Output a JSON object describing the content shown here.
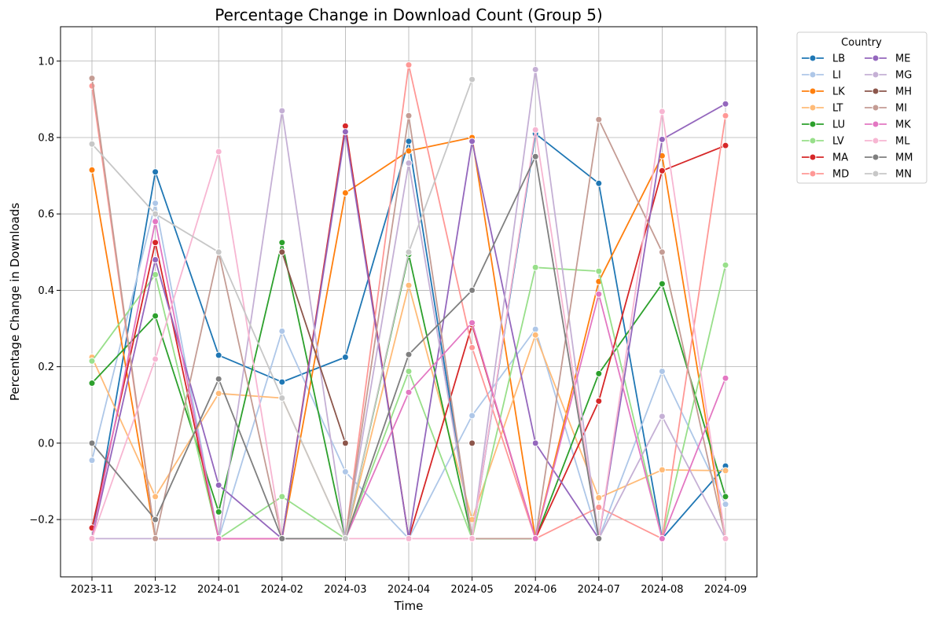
{
  "chart_data": {
    "type": "line",
    "title": "Percentage Change in Download Count (Group 5)",
    "xlabel": "Time",
    "ylabel": "Percentage Change in Downloads",
    "x": [
      "2023-11",
      "2023-12",
      "2024-01",
      "2024-02",
      "2024-03",
      "2024-04",
      "2024-05",
      "2024-06",
      "2024-07",
      "2024-08",
      "2024-09"
    ],
    "y_ticks": [
      -0.2,
      0.0,
      0.2,
      0.4,
      0.6,
      0.8,
      1.0
    ],
    "y_tick_labels": [
      "−0.2",
      "0.0",
      "0.2",
      "0.4",
      "0.6",
      "0.8",
      "1.0"
    ],
    "ylim": [
      -0.35,
      1.09
    ],
    "grid": true,
    "legend_title": "Country",
    "legend_placement": "outside-upper-right",
    "series": [
      {
        "name": "LB",
        "color": "#1f77b4",
        "values": [
          -0.25,
          0.71,
          0.23,
          0.16,
          0.225,
          0.79,
          -0.25,
          0.81,
          0.68,
          -0.25,
          -0.06
        ]
      },
      {
        "name": "LI",
        "color": "#aec7e8",
        "values": [
          -0.045,
          0.628,
          -0.25,
          0.293,
          -0.075,
          -0.25,
          0.072,
          0.298,
          -0.25,
          0.188,
          -0.16
        ]
      },
      {
        "name": "LK",
        "color": "#ff7f0e",
        "values": [
          0.715,
          -0.25,
          -0.25,
          -0.25,
          0.655,
          0.765,
          0.8,
          -0.25,
          0.423,
          0.752,
          -0.25
        ]
      },
      {
        "name": "LT",
        "color": "#ffbb78",
        "values": [
          0.225,
          -0.14,
          0.13,
          0.118,
          -0.25,
          0.413,
          -0.2,
          0.283,
          -0.143,
          -0.07,
          -0.072
        ]
      },
      {
        "name": "LU",
        "color": "#2ca02c",
        "values": [
          0.157,
          0.333,
          -0.18,
          0.525,
          -0.25,
          0.494,
          -0.25,
          -0.25,
          0.182,
          0.417,
          -0.14
        ]
      },
      {
        "name": "LV",
        "color": "#98df8a",
        "values": [
          0.215,
          0.441,
          -0.25,
          -0.14,
          -0.25,
          0.188,
          -0.25,
          0.46,
          0.45,
          -0.25,
          0.466
        ]
      },
      {
        "name": "MA",
        "color": "#d62728",
        "values": [
          -0.222,
          0.525,
          -0.25,
          -0.25,
          0.83,
          -0.25,
          0.31,
          -0.25,
          0.11,
          0.713,
          0.779
        ]
      },
      {
        "name": "MD",
        "color": "#ff9896",
        "values": [
          0.935,
          -0.25,
          -0.25,
          -0.25,
          -0.25,
          0.99,
          0.25,
          -0.25,
          -0.168,
          -0.25,
          0.857
        ]
      },
      {
        "name": "ME",
        "color": "#9467bd",
        "values": [
          -0.25,
          0.48,
          -0.11,
          -0.25,
          0.815,
          -0.25,
          0.79,
          0.0,
          -0.25,
          0.795,
          0.888
        ]
      },
      {
        "name": "MG",
        "color": "#c5b0d5",
        "values": [
          -0.25,
          -0.25,
          -0.25,
          0.87,
          -0.25,
          0.733,
          -0.25,
          0.978,
          -0.25,
          0.07,
          -0.25
        ]
      },
      {
        "name": "MH",
        "color": "#8c564b",
        "values": [
          -0.25,
          null,
          null,
          0.5,
          0.0,
          null,
          0.0,
          null,
          null,
          null,
          null
        ]
      },
      {
        "name": "MI",
        "color": "#c49c94",
        "values": [
          0.955,
          -0.25,
          0.5,
          -0.25,
          -0.25,
          0.857,
          -0.25,
          -0.25,
          0.847,
          0.5,
          -0.25
        ]
      },
      {
        "name": "MK",
        "color": "#e377c2",
        "values": [
          -0.25,
          0.58,
          -0.25,
          -0.25,
          -0.25,
          0.133,
          0.315,
          -0.25,
          0.39,
          -0.25,
          0.17
        ]
      },
      {
        "name": "ML",
        "color": "#f7b6d2",
        "values": [
          -0.25,
          0.22,
          0.763,
          -0.25,
          -0.25,
          -0.25,
          -0.25,
          0.82,
          -0.25,
          0.868,
          -0.25
        ]
      },
      {
        "name": "MM",
        "color": "#7f7f7f",
        "values": [
          0.0,
          -0.2,
          0.168,
          -0.25,
          -0.25,
          0.232,
          0.4,
          0.75,
          -0.25,
          null,
          null
        ]
      },
      {
        "name": "MN",
        "color": "#c7c7c7",
        "values": [
          0.783,
          0.6,
          0.5,
          0.118,
          -0.25,
          0.5,
          0.952,
          null,
          null,
          null,
          null
        ]
      }
    ]
  }
}
